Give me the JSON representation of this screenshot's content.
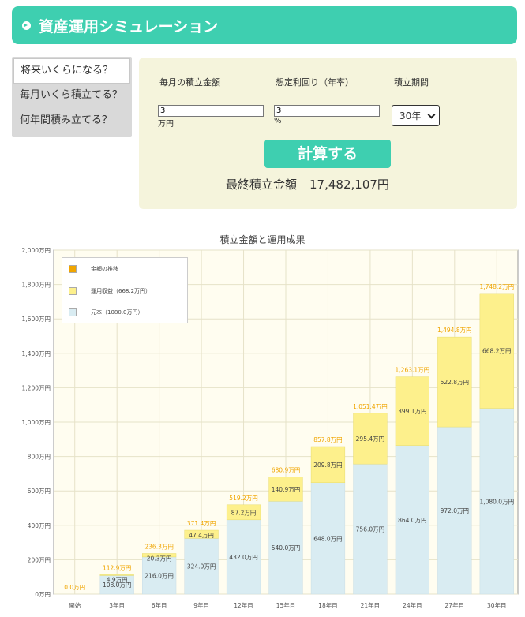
{
  "header": {
    "title": "資産運用シミュレーション"
  },
  "tabs": [
    {
      "label": "将来いくらになる？"
    },
    {
      "label": "毎月いくら積立てる？"
    },
    {
      "label": "何年間積み立てる？"
    }
  ],
  "form": {
    "monthly_label": "毎月の積立金額",
    "rate_label": "想定利回り（年率）",
    "period_label": "積立期間",
    "monthly_value": "3",
    "monthly_unit": "万円",
    "rate_value": "3",
    "rate_unit": "%",
    "period_value": "30年",
    "calc_button": "計算する",
    "result_label": "最終積立金額",
    "result_value": "17,482,107円"
  },
  "colors": {
    "accent": "#3ecfb0",
    "principal": "#d9ecf2",
    "gain": "#fdf08c",
    "total": "#f0a500"
  },
  "chart_data": {
    "type": "bar",
    "title": "積立金額と運用成果",
    "categories": [
      "開始",
      "3年目",
      "6年目",
      "9年目",
      "12年目",
      "15年目",
      "18年目",
      "21年目",
      "24年目",
      "27年目",
      "30年目"
    ],
    "series": [
      {
        "name": "元本（1080.0万円）",
        "values": [
          0,
          108.0,
          216.0,
          324.0,
          432.0,
          540.0,
          648.0,
          756.0,
          864.0,
          972.0,
          1080.0
        ]
      },
      {
        "name": "運用収益（668.2万円）",
        "values": [
          0,
          4.9,
          20.3,
          47.4,
          87.2,
          140.9,
          209.8,
          295.4,
          399.1,
          522.8,
          668.2
        ]
      },
      {
        "name": "金額の推移",
        "values": [
          0.0,
          112.9,
          236.3,
          371.4,
          519.2,
          680.9,
          857.8,
          1051.4,
          1263.1,
          1494.8,
          1748.2
        ]
      }
    ],
    "principal_labels": [
      "",
      "108.0万円",
      "216.0万円",
      "324.0万円",
      "432.0万円",
      "540.0万円",
      "648.0万円",
      "756.0万円",
      "864.0万円",
      "972.0万円",
      "1,080.0万円"
    ],
    "gain_labels": [
      "",
      "4.9万円",
      "20.3万円",
      "47.4万円",
      "87.2万円",
      "140.9万円",
      "209.8万円",
      "295.4万円",
      "399.1万円",
      "522.8万円",
      "668.2万円"
    ],
    "total_labels": [
      "0.0万円",
      "112.9万円",
      "236.3万円",
      "371.4万円",
      "519.2万円",
      "680.9万円",
      "857.8万円",
      "1,051.4万円",
      "1,263.1万円",
      "1,494.8万円",
      "1,748.2万円"
    ],
    "yticks": [
      "0万円",
      "200万円",
      "400万円",
      "600万円",
      "800万円",
      "1,000万円",
      "1,200万円",
      "1,400万円",
      "1,600万円",
      "1,800万円",
      "2,000万円"
    ],
    "ylim": [
      0,
      2000
    ],
    "legend": [
      "金額の推移",
      "運用収益（668.2万円）",
      "元本（1080.0万円）"
    ],
    "legend_position": "top-left",
    "grid": true
  }
}
